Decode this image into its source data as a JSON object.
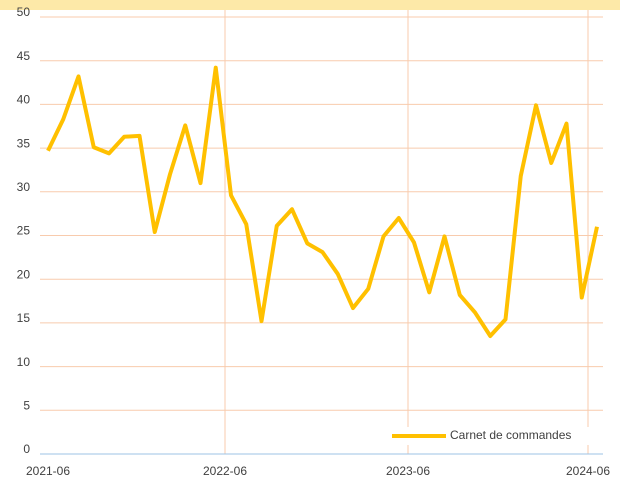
{
  "chart_data": {
    "type": "line",
    "categories": [
      "2021-06",
      null,
      null,
      null,
      null,
      null,
      null,
      null,
      null,
      null,
      null,
      null,
      "2022-06",
      null,
      null,
      null,
      null,
      null,
      null,
      null,
      null,
      null,
      null,
      null,
      "2023-06",
      null,
      null,
      null,
      null,
      null,
      null,
      null,
      null,
      null,
      null,
      null,
      "2024-06"
    ],
    "series": [
      {
        "name": "Carnet de commandes",
        "color": "#ffc000",
        "values": [
          34.7,
          38.3,
          43.2,
          35.1,
          34.4,
          36.3,
          36.4,
          25.4,
          32.0,
          37.6,
          31.0,
          44.2,
          29.6,
          26.3,
          15.2,
          26.1,
          28.0,
          24.1,
          23.1,
          20.6,
          16.7,
          18.9,
          24.9,
          27.0,
          24.2,
          18.5,
          24.9,
          18.2,
          16.2,
          13.5,
          15.4,
          31.8,
          39.9,
          33.3,
          37.8,
          17.9,
          26.0
        ]
      }
    ],
    "ylim": [
      0,
      50
    ],
    "yticks": [
      0,
      5,
      10,
      15,
      20,
      25,
      30,
      35,
      40,
      45,
      50
    ],
    "grid": true,
    "legend": "bottom-right"
  }
}
